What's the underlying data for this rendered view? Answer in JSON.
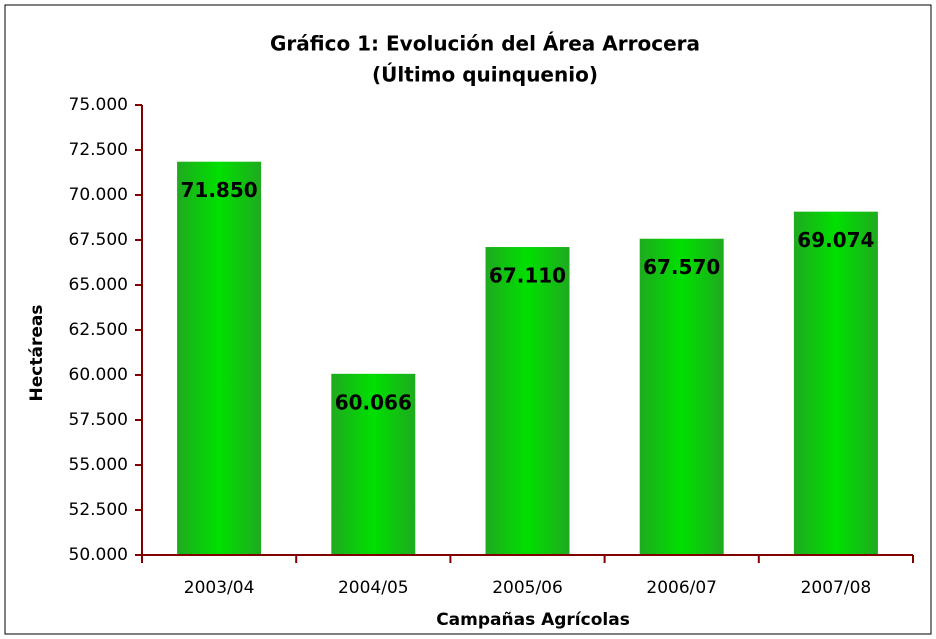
{
  "chart_data": {
    "type": "bar",
    "title": "Gráfico 1: Evolución del Área Arrocera",
    "subtitle": "(Último quinquenio)",
    "x_label": "Campañas Agrícolas",
    "y_label": "Hectáreas",
    "categories": [
      "2003/04",
      "2004/05",
      "2005/06",
      "2006/07",
      "2007/08"
    ],
    "values": [
      71850,
      60066,
      67110,
      67570,
      69074
    ],
    "value_labels": [
      "71.850",
      "60.066",
      "67.110",
      "67.570",
      "69.074"
    ],
    "color": "#00e000",
    "ylim": [
      50000,
      75000
    ],
    "yticks": [
      {
        "value": 50000,
        "label": "50.000"
      },
      {
        "value": 52500,
        "label": "52.500"
      },
      {
        "value": 55000,
        "label": "55.000"
      },
      {
        "value": 57500,
        "label": "57.500"
      },
      {
        "value": 60000,
        "label": "60.000"
      },
      {
        "value": 62500,
        "label": "62.500"
      },
      {
        "value": 65000,
        "label": "65.000"
      },
      {
        "value": 67500,
        "label": "67.500"
      },
      {
        "value": 70000,
        "label": "70.000"
      },
      {
        "value": 72500,
        "label": "72.500"
      },
      {
        "value": 75000,
        "label": "75.000"
      }
    ],
    "grid": false
  }
}
